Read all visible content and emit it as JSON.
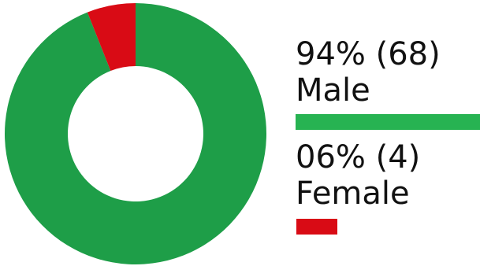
{
  "chart_data": {
    "type": "pie",
    "categories": [
      "Male",
      "Female"
    ],
    "values": [
      94,
      6
    ],
    "counts": [
      68,
      4
    ],
    "value_labels": [
      "94% (68)",
      "06% (4)"
    ],
    "colors": [
      "#1E9E48",
      "#D90B15"
    ],
    "legend_colors": [
      "#27B352",
      "#D90B15"
    ],
    "legend_placement": "right"
  }
}
